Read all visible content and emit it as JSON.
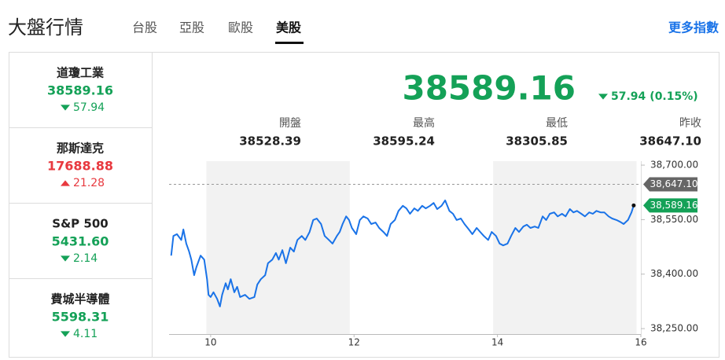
{
  "header": {
    "title": "大盤行情",
    "tabs": [
      "台股",
      "亞股",
      "歐股",
      "美股"
    ],
    "active_tab": 3,
    "more_link": "更多指數"
  },
  "colors": {
    "up": "#e8393f",
    "down": "#14a157"
  },
  "sidebar": [
    {
      "name": "道瓊工業",
      "value": "38589.16",
      "change": "57.94",
      "direction": "down"
    },
    {
      "name": "那斯達克",
      "value": "17688.88",
      "change": "21.28",
      "direction": "up"
    },
    {
      "name": "S&P 500",
      "value": "5431.60",
      "change": "2.14",
      "direction": "down"
    },
    {
      "name": "費城半導體",
      "value": "5598.31",
      "change": "4.11",
      "direction": "down"
    }
  ],
  "summary": {
    "price": "38589.16",
    "change": "57.94",
    "change_pct": "(0.15%)",
    "direction": "down",
    "stats": [
      {
        "label": "開盤",
        "value": "38528.39"
      },
      {
        "label": "最高",
        "value": "38595.24"
      },
      {
        "label": "最低",
        "value": "38305.85"
      },
      {
        "label": "昨收",
        "value": "38647.10"
      }
    ]
  },
  "chart_data": {
    "type": "line",
    "color": "#1a73e8",
    "x": [
      9.45,
      9.48,
      9.53,
      9.59,
      9.62,
      9.66,
      9.7,
      9.73,
      9.77,
      9.8,
      9.86,
      9.91,
      9.95,
      9.97,
      10.0,
      10.04,
      10.09,
      10.13,
      10.16,
      10.21,
      10.24,
      10.28,
      10.33,
      10.37,
      10.41,
      10.48,
      10.54,
      10.61,
      10.65,
      10.7,
      10.76,
      10.8,
      10.86,
      10.91,
      10.95,
      11.0,
      11.05,
      11.11,
      11.16,
      11.21,
      11.27,
      11.32,
      11.38,
      11.43,
      11.48,
      11.54,
      11.59,
      11.65,
      11.7,
      11.76,
      11.8,
      11.84,
      11.89,
      11.93,
      11.97,
      12.03,
      12.08,
      12.13,
      12.19,
      12.24,
      12.3,
      12.35,
      12.41,
      12.46,
      12.51,
      12.57,
      12.62,
      12.68,
      12.73,
      12.78,
      12.84,
      12.89,
      12.95,
      13.0,
      13.06,
      13.11,
      13.16,
      13.22,
      13.27,
      13.33,
      13.38,
      13.43,
      13.49,
      13.54,
      13.6,
      13.65,
      13.71,
      13.76,
      13.81,
      13.87,
      13.92,
      13.98,
      14.03,
      14.08,
      14.14,
      14.19,
      14.25,
      14.3,
      14.36,
      14.41,
      14.46,
      14.52,
      14.57,
      14.63,
      14.68,
      14.73,
      14.79,
      14.84,
      14.9,
      14.95,
      15.01,
      15.06,
      15.11,
      15.17,
      15.22,
      15.28,
      15.33,
      15.38,
      15.44,
      15.49,
      15.55,
      15.6,
      15.66,
      15.71,
      15.76,
      15.82,
      15.87,
      15.9
    ],
    "values": [
      38451,
      38505,
      38510,
      38494,
      38523,
      38484,
      38462,
      38440,
      38397,
      38419,
      38451,
      38440,
      38386,
      38343,
      38337,
      38350,
      38332,
      38311,
      38343,
      38375,
      38358,
      38386,
      38350,
      38365,
      38337,
      38343,
      38332,
      38337,
      38371,
      38386,
      38397,
      38430,
      38440,
      38458,
      38440,
      38466,
      38430,
      38473,
      38462,
      38494,
      38505,
      38494,
      38516,
      38549,
      38553,
      38538,
      38505,
      38494,
      38484,
      38505,
      38516,
      38538,
      38559,
      38549,
      38527,
      38510,
      38549,
      38559,
      38553,
      38538,
      38542,
      38527,
      38516,
      38505,
      38538,
      38549,
      38574,
      38588,
      38581,
      38566,
      38581,
      38574,
      38588,
      38581,
      38588,
      38596,
      38579,
      38588,
      38603,
      38574,
      38566,
      38549,
      38553,
      38538,
      38523,
      38510,
      38527,
      38516,
      38505,
      38494,
      38516,
      38505,
      38484,
      38479,
      38484,
      38505,
      38527,
      38516,
      38531,
      38536,
      38527,
      38531,
      38527,
      38559,
      38549,
      38566,
      38570,
      38559,
      38566,
      38559,
      38579,
      38570,
      38574,
      38566,
      38559,
      38570,
      38566,
      38574,
      38570,
      38570,
      38559,
      38553,
      38549,
      38544,
      38538,
      38549,
      38570,
      38589.16
    ],
    "xlim": [
      9.42,
      16.0
    ],
    "xticks": [
      10,
      12,
      14,
      16
    ],
    "ylim": [
      38235,
      38711
    ],
    "yticks": [
      {
        "value": 38250,
        "label": "38,250.00"
      },
      {
        "value": 38400,
        "label": "38,400.00"
      },
      {
        "value": 38550,
        "label": "38,550.00"
      },
      {
        "value": 38700,
        "label": "38,700.00"
      }
    ],
    "shaded_ranges": [
      [
        9.94,
        11.94
      ],
      [
        13.94,
        15.94
      ]
    ],
    "ref_line": {
      "value": 38647.1,
      "label": "38,647.10"
    },
    "last_label": "38,589.16"
  }
}
